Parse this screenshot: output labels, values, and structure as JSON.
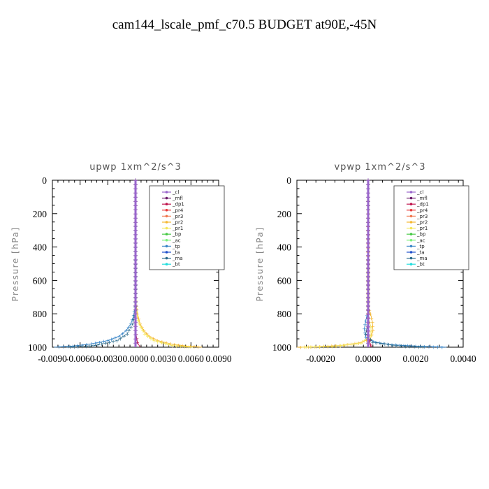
{
  "title": "cam144_lscale_pmf_c70.5  BUDGET at90E,-45N",
  "colors": {
    "_cl": "#9966cc",
    "_mfl": "#6a1b6a",
    "_dp1": "#c0144d",
    "_pr4": "#e83a3a",
    "_pr3": "#f07850",
    "_pr2": "#f5b731",
    "_pr1": "#f5e65c",
    "_bp": "#47c946",
    "_ac": "#7cf07c",
    "_tp": "#3a86c8",
    "_ta": "#1f4fcc",
    "_ma": "#2a6a8a",
    "_bt": "#22dddd"
  },
  "chart_data": [
    {
      "type": "line",
      "title": "upwp   1xm^2/s^3",
      "xlabel": "",
      "ylabel": "Pressure [hPa]",
      "xlim": [
        -0.009,
        0.009
      ],
      "ylim": [
        1000,
        0
      ],
      "x_ticks": [
        "-0.0090",
        "-0.0060",
        "-0.0030",
        "0.0000",
        "0.0030",
        "0.0060",
        "0.0090"
      ],
      "x_tick_values": [
        -0.009,
        -0.006,
        -0.003,
        0.0,
        0.003,
        0.006,
        0.009
      ],
      "y_ticks": [
        "0",
        "200",
        "400",
        "600",
        "800",
        "1000"
      ],
      "y_tick_values": [
        0,
        200,
        400,
        600,
        800,
        1000
      ],
      "legend": [
        "_cl",
        "_mfl",
        "_dp1",
        "_pr4",
        "_pr3",
        "_pr2",
        "_pr1",
        "_bp",
        "_ac",
        "_tp",
        "_ta",
        "_ma",
        "_bt"
      ],
      "series": [
        {
          "name": "_pr2",
          "points": [
            [
              0.0,
              0
            ],
            [
              0.0,
              650
            ],
            [
              5e-05,
              730
            ],
            [
              0.0002,
              800
            ],
            [
              0.0005,
              860
            ],
            [
              0.0009,
              900
            ],
            [
              0.0015,
              935
            ],
            [
              0.0024,
              960
            ],
            [
              0.0038,
              980
            ],
            [
              0.0055,
              993
            ],
            [
              0.0072,
              1000
            ]
          ]
        },
        {
          "name": "_pr1",
          "points": [
            [
              0.0,
              0
            ],
            [
              0.0,
              700
            ],
            [
              0.0001,
              790
            ],
            [
              0.0004,
              860
            ],
            [
              0.001,
              920
            ],
            [
              0.002,
              960
            ],
            [
              0.004,
              990
            ],
            [
              0.0062,
              1000
            ]
          ]
        },
        {
          "name": "_tp",
          "points": [
            [
              0.0,
              0
            ],
            [
              0.0,
              700
            ],
            [
              -5e-05,
              760
            ],
            [
              -0.0002,
              810
            ],
            [
              -0.0005,
              860
            ],
            [
              -0.001,
              900
            ],
            [
              -0.0018,
              935
            ],
            [
              -0.003,
              960
            ],
            [
              -0.0048,
              980
            ],
            [
              -0.0068,
              993
            ],
            [
              -0.0088,
              1000
            ]
          ]
        },
        {
          "name": "_ma",
          "points": [
            [
              0.0,
              0
            ],
            [
              0.0,
              780
            ],
            [
              -0.0003,
              860
            ],
            [
              -0.0009,
              920
            ],
            [
              -0.002,
              960
            ],
            [
              -0.0045,
              990
            ],
            [
              -0.0075,
              1000
            ]
          ]
        },
        {
          "name": "_dp1",
          "points": [
            [
              0.0,
              0
            ],
            [
              0.0,
              900
            ],
            [
              0.0002,
              970
            ],
            [
              0.0005,
              1000
            ]
          ]
        },
        {
          "name": "_mfl",
          "points": [
            [
              0.0,
              0
            ],
            [
              0.0,
              1000
            ]
          ]
        },
        {
          "name": "_cl",
          "points": [
            [
              0.0,
              0
            ],
            [
              0.0,
              1000
            ]
          ]
        }
      ]
    },
    {
      "type": "line",
      "title": "vpwp   1xm^2/s^3",
      "xlabel": "",
      "ylabel": "Pressure [hPa]",
      "xlim": [
        -0.003,
        0.004
      ],
      "ylim": [
        1000,
        0
      ],
      "x_ticks": [
        "-0.0020",
        "0.0000",
        "0.0020",
        "0.0040"
      ],
      "x_tick_values": [
        -0.002,
        0.0,
        0.002,
        0.004
      ],
      "y_ticks": [
        "0",
        "200",
        "400",
        "600",
        "800",
        "1000"
      ],
      "y_tick_values": [
        0,
        200,
        400,
        600,
        800,
        1000
      ],
      "legend": [
        "_cl",
        "_mfl",
        "_dp1",
        "_pr4",
        "_pr3",
        "_pr2",
        "_pr1",
        "_bp",
        "_ac",
        "_tp",
        "_ta",
        "_ma",
        "_bt"
      ],
      "series": [
        {
          "name": "_pr2",
          "points": [
            [
              0.0,
              0
            ],
            [
              0.0,
              760
            ],
            [
              0.0001,
              800
            ],
            [
              0.00018,
              850
            ],
            [
              0.0002,
              900
            ],
            [
              0.0001,
              950
            ],
            [
              -0.0004,
              975
            ],
            [
              -0.0012,
              990
            ],
            [
              -0.0022,
              997
            ],
            [
              -0.003,
              1000
            ]
          ]
        },
        {
          "name": "_pr1",
          "points": [
            [
              0.0,
              0
            ],
            [
              0.0,
              820
            ],
            [
              0.00012,
              880
            ],
            [
              0.00012,
              930
            ],
            [
              -0.0003,
              975
            ],
            [
              -0.0015,
              995
            ],
            [
              -0.0028,
              1000
            ]
          ]
        },
        {
          "name": "_tp",
          "points": [
            [
              0.0,
              0
            ],
            [
              0.0,
              780
            ],
            [
              -0.0001,
              840
            ],
            [
              -0.00016,
              890
            ],
            [
              -0.0001,
              940
            ],
            [
              0.0003,
              970
            ],
            [
              0.001,
              985
            ],
            [
              0.002,
              993
            ],
            [
              0.0033,
              1000
            ]
          ]
        },
        {
          "name": "_ma",
          "points": [
            [
              0.0,
              0
            ],
            [
              0.0,
              850
            ],
            [
              -0.0001,
              920
            ],
            [
              0.0002,
              970
            ],
            [
              0.0012,
              990
            ],
            [
              0.0025,
              1000
            ]
          ]
        },
        {
          "name": "_dp1",
          "points": [
            [
              0.0,
              0
            ],
            [
              0.0,
              930
            ],
            [
              0.0001,
              985
            ],
            [
              0.00015,
              1000
            ]
          ]
        },
        {
          "name": "_mfl",
          "points": [
            [
              0.0,
              0
            ],
            [
              0.0,
              1000
            ]
          ]
        },
        {
          "name": "_cl",
          "points": [
            [
              0.0,
              0
            ],
            [
              0.0,
              1000
            ]
          ]
        }
      ]
    }
  ]
}
